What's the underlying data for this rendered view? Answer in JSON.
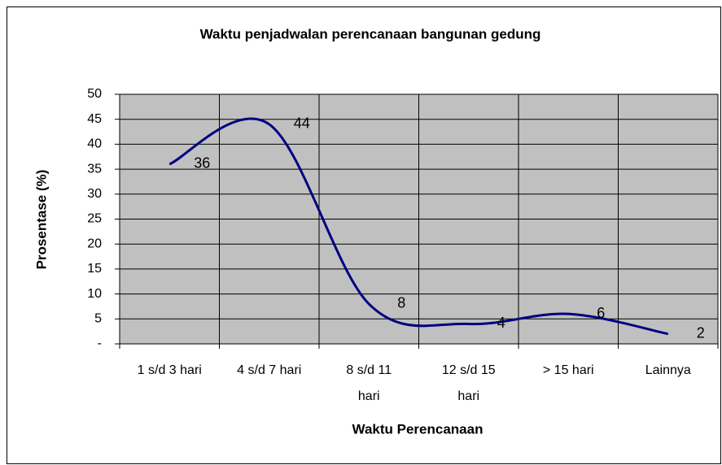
{
  "chart_data": {
    "type": "line",
    "title": "Waktu penjadwalan perencanaan bangunan gedung",
    "x_label": "Waktu Perencanaan",
    "y_label": "Prosentase (%)",
    "categories": [
      "1 s/d 3 hari",
      "4 s/d 7 hari",
      "8 s/d 11 hari",
      "12 s/d 15 hari",
      "> 15 hari",
      "Lainnya"
    ],
    "values": [
      36,
      44,
      8,
      4,
      6,
      2
    ],
    "color": "#000080",
    "smooth": true,
    "ylim": [
      0,
      50
    ],
    "yticks": [
      {
        "value": 0,
        "label": "-"
      },
      5,
      10,
      15,
      20,
      25,
      30,
      35,
      40,
      45,
      50
    ],
    "grid": true
  }
}
